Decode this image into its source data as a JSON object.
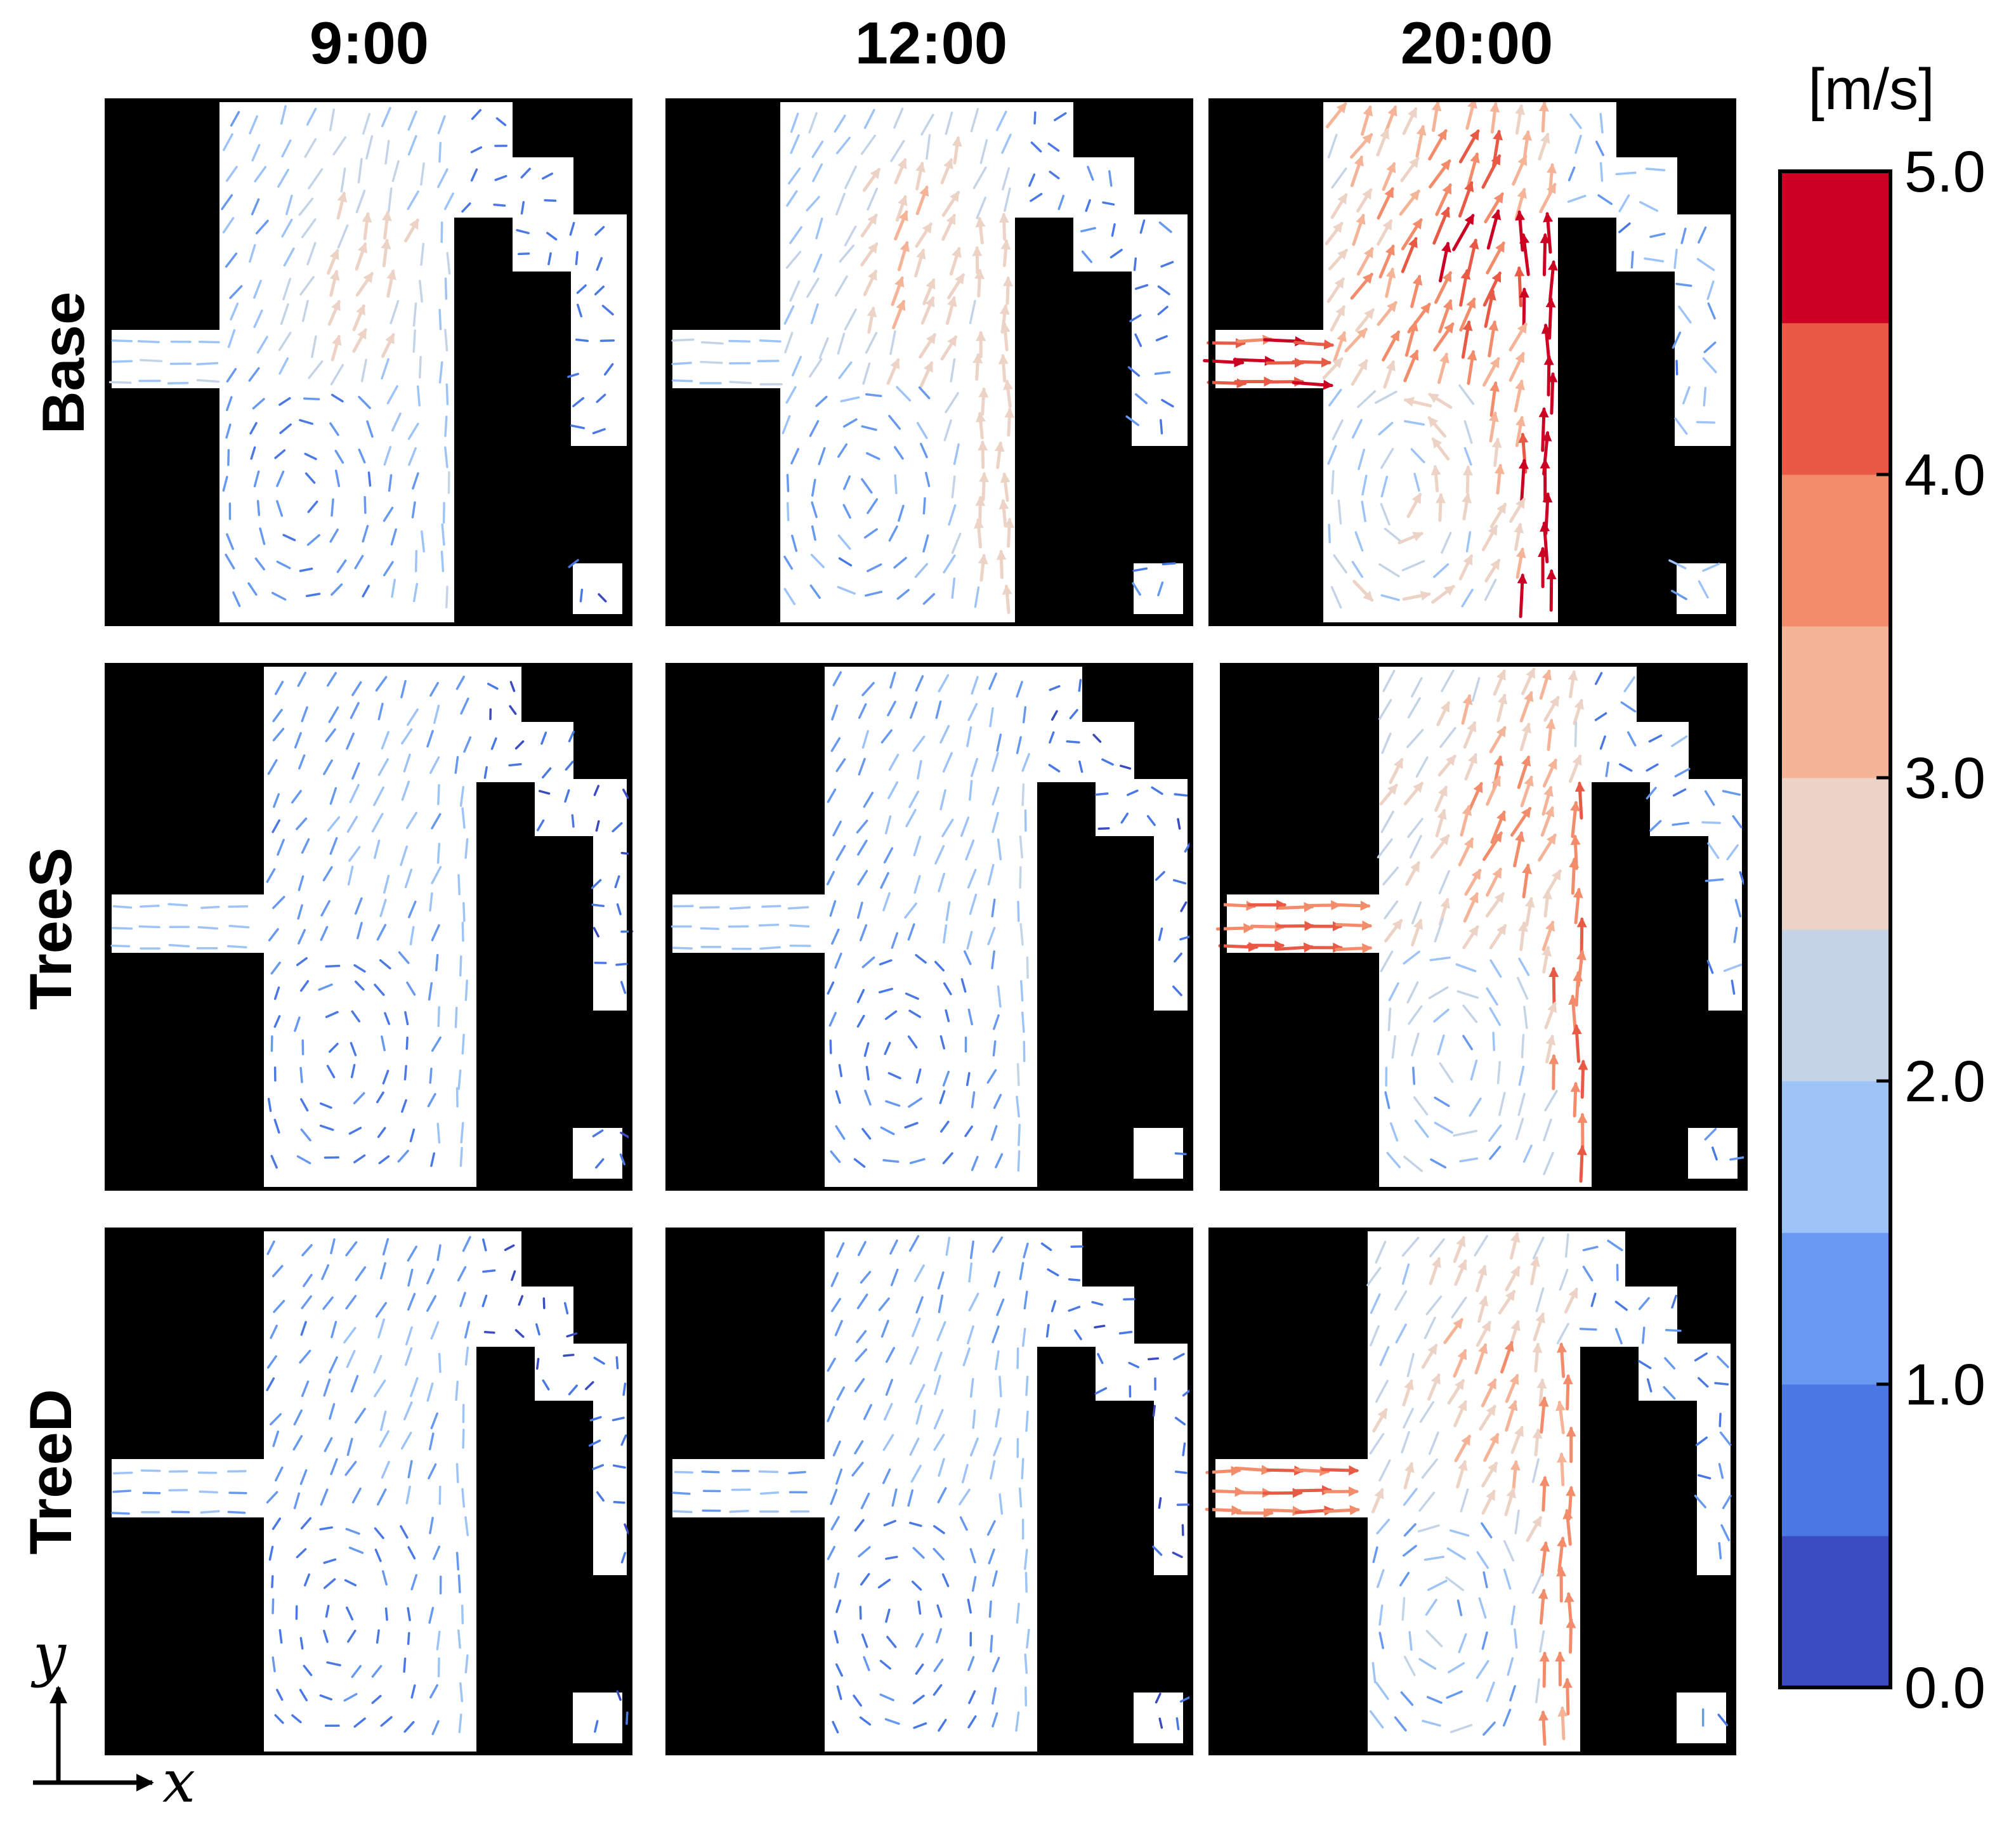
{
  "chart_data": {
    "type": "vector-field-grid",
    "title": "",
    "columns": [
      "9:00",
      "12:00",
      "20:00"
    ],
    "rows": [
      "Base",
      "TreeS",
      "TreeD"
    ],
    "colorbar": {
      "unit": "[m/s]",
      "min": 0.0,
      "max": 5.0,
      "step": 0.5,
      "ticks": [
        "0.0",
        "1.0",
        "2.0",
        "3.0",
        "4.0",
        "5.0"
      ],
      "colors": [
        "#3a4cc0",
        "#4a78e4",
        "#6699ef",
        "#9ec3f7",
        "#c4d4e6",
        "#edd3c6",
        "#f5b497",
        "#f38c6a",
        "#e85a45",
        "#cc0022"
      ]
    },
    "panels": [
      {
        "row": "Base",
        "time": "9:00",
        "inflow_speed": 2.0,
        "core_speed": 3.0,
        "channel_speed": 2.0,
        "mean_speed": 1.6
      },
      {
        "row": "Base",
        "time": "12:00",
        "inflow_speed": 2.0,
        "core_speed": 3.4,
        "channel_speed": 2.8,
        "mean_speed": 2.0
      },
      {
        "row": "Base",
        "time": "20:00",
        "inflow_speed": 4.4,
        "core_speed": 4.8,
        "channel_speed": 4.9,
        "mean_speed": 3.2
      },
      {
        "row": "TreeS",
        "time": "9:00",
        "inflow_speed": 1.8,
        "core_speed": 2.0,
        "channel_speed": 1.8,
        "mean_speed": 1.3
      },
      {
        "row": "TreeS",
        "time": "12:00",
        "inflow_speed": 1.8,
        "core_speed": 2.2,
        "channel_speed": 2.0,
        "mean_speed": 1.4
      },
      {
        "row": "TreeS",
        "time": "20:00",
        "inflow_speed": 4.2,
        "core_speed": 4.0,
        "channel_speed": 4.0,
        "mean_speed": 2.7
      },
      {
        "row": "TreeD",
        "time": "9:00",
        "inflow_speed": 1.6,
        "core_speed": 1.9,
        "channel_speed": 1.6,
        "mean_speed": 1.2
      },
      {
        "row": "TreeD",
        "time": "12:00",
        "inflow_speed": 1.6,
        "core_speed": 2.0,
        "channel_speed": 1.8,
        "mean_speed": 1.3
      },
      {
        "row": "TreeD",
        "time": "20:00",
        "inflow_speed": 4.3,
        "core_speed": 3.6,
        "channel_speed": 3.8,
        "mean_speed": 2.5
      }
    ],
    "axes": {
      "x": "x",
      "y": "y"
    }
  }
}
